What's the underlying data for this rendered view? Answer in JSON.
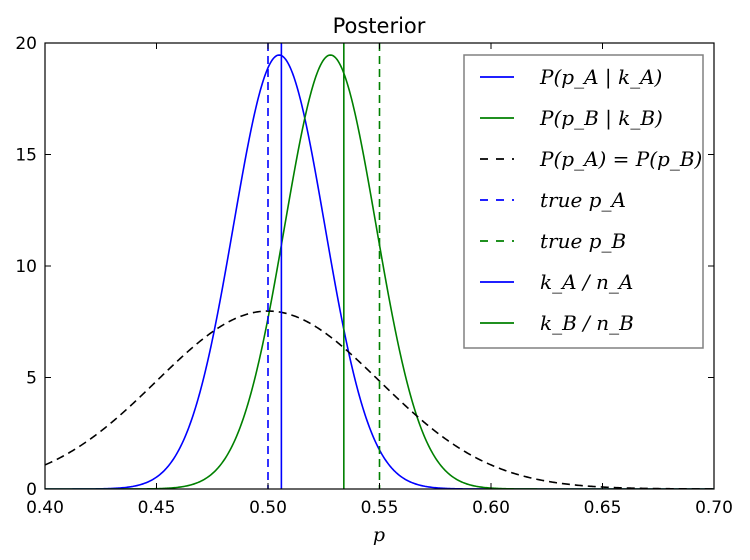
{
  "chart_data": {
    "type": "line",
    "title": "Posterior",
    "xlabel": "p",
    "ylabel": "",
    "xlim": [
      0.4,
      0.7
    ],
    "ylim": [
      0,
      20
    ],
    "xticks": [
      "0.40",
      "0.45",
      "0.50",
      "0.55",
      "0.60",
      "0.65",
      "0.70"
    ],
    "yticks": [
      "0",
      "5",
      "10",
      "15",
      "20"
    ],
    "grid": false,
    "legend_position": "upper-right",
    "curves": [
      {
        "name": "P(p_A|k_A)",
        "legend_label": "P(p_A | k_A)",
        "kind": "normal",
        "mean": 0.505,
        "sd": 0.0205,
        "color": "#0000ff",
        "dash": "solid"
      },
      {
        "name": "P(p_B|k_B)",
        "legend_label": "P(p_B | k_B)",
        "kind": "normal",
        "mean": 0.528,
        "sd": 0.0205,
        "color": "#008000",
        "dash": "solid"
      },
      {
        "name": "P(p_A)=P(p_B)",
        "legend_label": "P(p_A) = P(p_B)",
        "kind": "normal",
        "mean": 0.5,
        "sd": 0.05,
        "color": "#000000",
        "dash": "dashed"
      }
    ],
    "vlines": [
      {
        "name": "true p_A",
        "legend_label": "true p_A",
        "x": 0.5,
        "color": "#0000ff",
        "dash": "dashed"
      },
      {
        "name": "true p_B",
        "legend_label": "true p_B",
        "x": 0.55,
        "color": "#008000",
        "dash": "dashed"
      },
      {
        "name": "k_A/n_A",
        "legend_label": "k_A / n_A",
        "x": 0.506,
        "color": "#0000ff",
        "dash": "solid"
      },
      {
        "name": "k_B/n_B",
        "legend_label": "k_B / n_B",
        "x": 0.534,
        "color": "#008000",
        "dash": "solid"
      }
    ],
    "legend_order": [
      "P(p_A|k_A)",
      "P(p_B|k_B)",
      "P(p_A)=P(p_B)",
      "true p_A",
      "true p_B",
      "k_A/n_A",
      "k_B/n_B"
    ]
  }
}
